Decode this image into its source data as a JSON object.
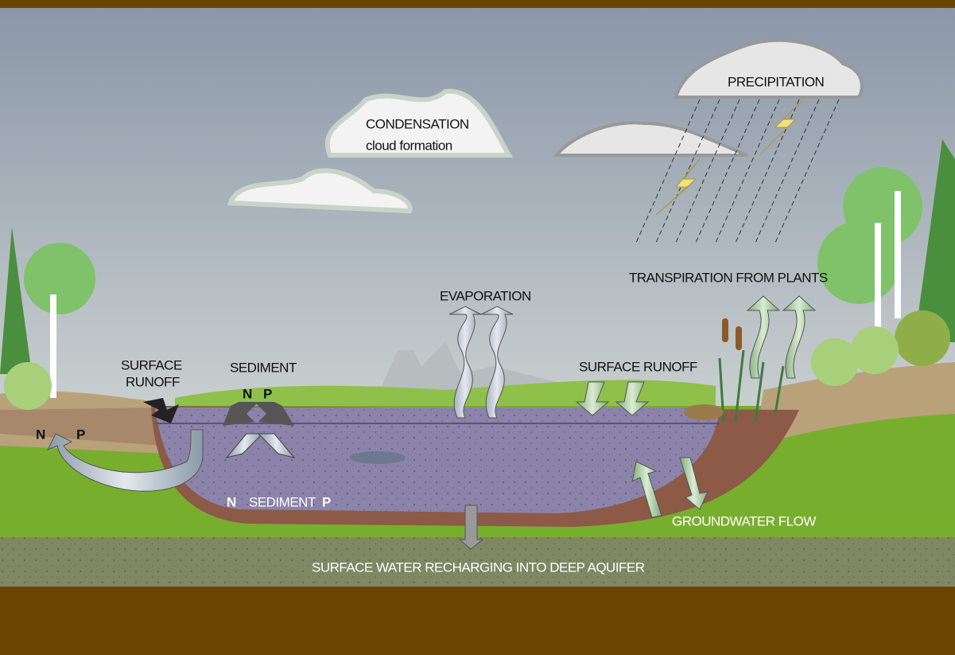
{
  "clouds": {
    "condensation": "CONDENSATION",
    "cloud_formation": "cloud formation",
    "precipitation": "PRECIPITATION"
  },
  "processes": {
    "evaporation": "EVAPORATION",
    "transpiration": "TRANSPIRATION FROM PLANTS",
    "surface_runoff_left": [
      "SURFACE",
      "RUNOFF"
    ],
    "surface_runoff_right": "SURFACE RUNOFF",
    "sediment": "SEDIMENT",
    "groundwater_flow": "GROUNDWATER FLOW",
    "recharge": "SURFACE WATER RECHARGING INTO DEEP AQUIFER"
  },
  "nutrients": {
    "sediment_top": [
      "N",
      "P"
    ],
    "shore": [
      "N",
      "P"
    ],
    "lake_bottom": [
      "N",
      "SEDIMENT",
      "P"
    ]
  }
}
